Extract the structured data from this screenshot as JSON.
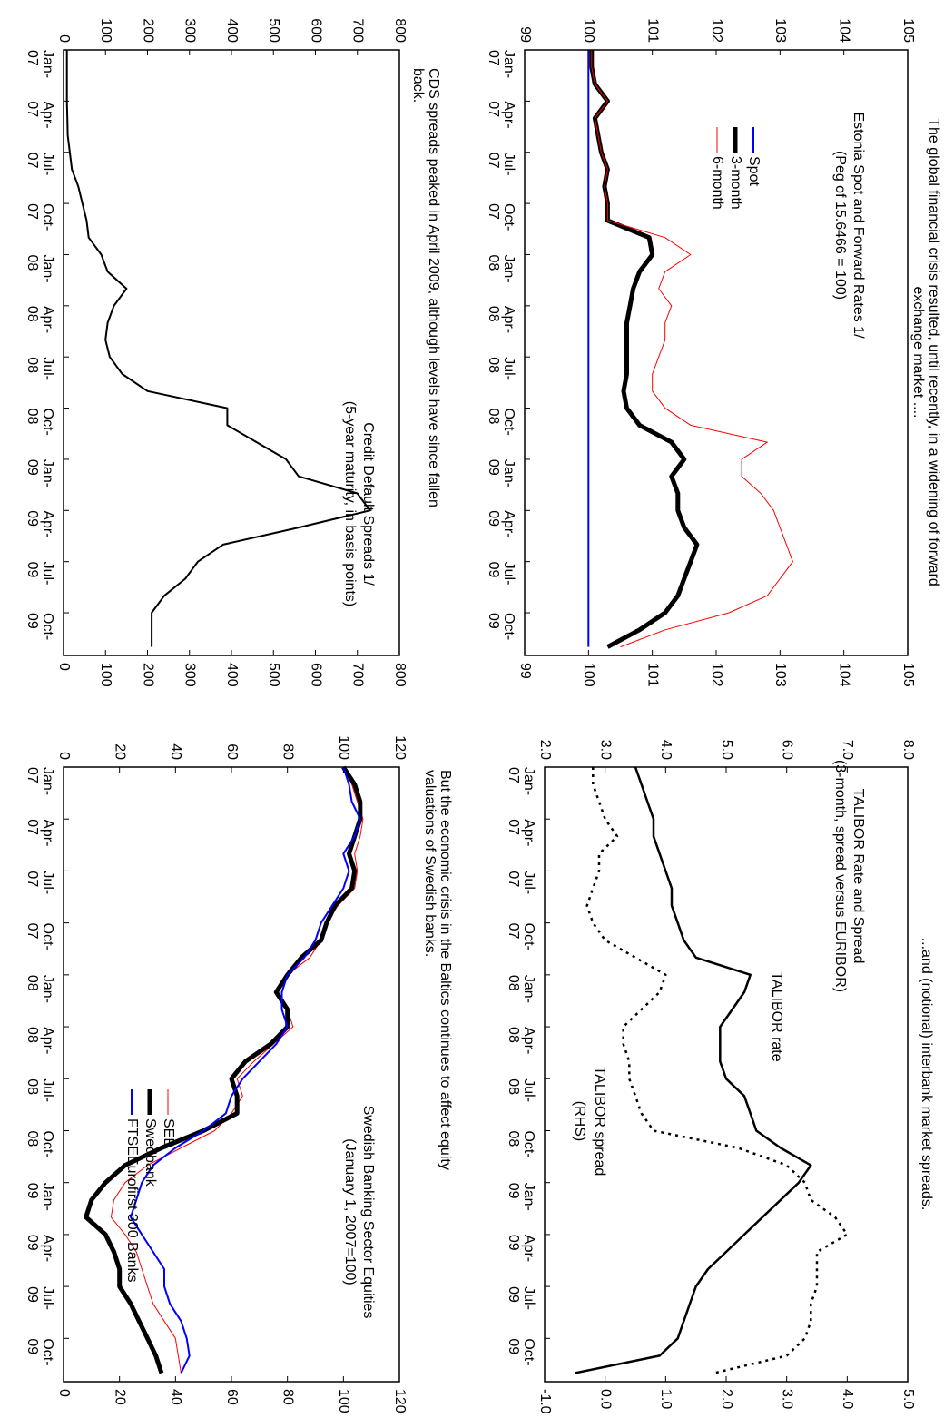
{
  "chart_data": [
    {
      "type": "line",
      "caption": [
        "The global financial crisis resulted, until recently, in a widening of forward",
        "exchange market ...."
      ],
      "title": "Estonia Spot and Forward Rates 1/",
      "subtitle": "(Peg of 15.6466 = 100)",
      "x": [
        0,
        1,
        2,
        3,
        4,
        5,
        6,
        7,
        8,
        9,
        10,
        11,
        12,
        13,
        14,
        15,
        16,
        17,
        18,
        19,
        20,
        21,
        22,
        23,
        24,
        25,
        26,
        27,
        28,
        29,
        30,
        31,
        32,
        33,
        34,
        35
      ],
      "xlim": [
        0,
        35.5
      ],
      "xticks": [
        {
          "value": 0,
          "label": "Jan-07"
        },
        {
          "value": 3,
          "label": "Apr-07"
        },
        {
          "value": 6,
          "label": "Jul-07"
        },
        {
          "value": 9,
          "label": "Oct-07"
        },
        {
          "value": 12,
          "label": "Jan-08"
        },
        {
          "value": 15,
          "label": "Apr-08"
        },
        {
          "value": 18,
          "label": "Jul-08"
        },
        {
          "value": 21,
          "label": "Oct-08"
        },
        {
          "value": 24,
          "label": "Jan-09"
        },
        {
          "value": 27,
          "label": "Apr-09"
        },
        {
          "value": 30,
          "label": "Jul-09"
        },
        {
          "value": 33,
          "label": "Oct-09"
        }
      ],
      "ylim": [
        99,
        105
      ],
      "yticks": [
        99,
        100,
        101,
        102,
        103,
        104,
        105
      ],
      "legend": true,
      "series": [
        {
          "name": "Spot",
          "color": "#0000ff",
          "values": [
            100,
            100,
            100,
            100,
            100,
            100,
            100,
            100,
            100,
            100,
            100,
            100,
            100,
            100,
            100,
            100,
            100,
            100,
            100,
            100,
            100,
            100,
            100,
            100,
            100,
            100,
            100,
            100,
            100,
            100,
            100,
            100,
            100,
            100,
            100,
            100
          ]
        },
        {
          "name": "3-month",
          "color": "#000000",
          "values": [
            100.05,
            100.05,
            100.1,
            100.3,
            100.1,
            100.15,
            100.2,
            100.3,
            100.25,
            100.3,
            100.3,
            100.95,
            101.0,
            100.8,
            100.7,
            100.65,
            100.6,
            100.6,
            100.6,
            100.6,
            100.55,
            100.6,
            100.8,
            101.3,
            101.5,
            101.3,
            101.4,
            101.4,
            101.5,
            101.7,
            101.6,
            101.5,
            101.4,
            101.2,
            100.8,
            100.3
          ]
        },
        {
          "name": "6-month",
          "color": "#ff0000",
          "values": [
            100.05,
            100.05,
            100.1,
            100.3,
            100.1,
            100.15,
            100.2,
            100.3,
            100.25,
            100.3,
            100.3,
            101.2,
            101.6,
            101.2,
            101.1,
            101.3,
            101.2,
            101.2,
            101.1,
            101.0,
            101.0,
            101.2,
            101.6,
            102.8,
            102.4,
            102.4,
            102.7,
            102.9,
            103.0,
            103.1,
            103.2,
            103.0,
            102.8,
            102.2,
            101.2,
            100.5
          ]
        }
      ]
    },
    {
      "type": "line",
      "caption": [
        "...and (notional) interbank market spreads."
      ],
      "title": "TALIBOR Rate and Spread",
      "subtitle": "(3-month, spread versus EURIBOR)",
      "annotations": [
        "TALIBOR rate",
        "TALIBOR spread",
        "(RHS)"
      ],
      "x": [
        0,
        1,
        2,
        3,
        4,
        5,
        6,
        7,
        8,
        9,
        10,
        11,
        12,
        13,
        14,
        15,
        16,
        17,
        18,
        19,
        20,
        21,
        22,
        23,
        24,
        25,
        26,
        27,
        28,
        29,
        30,
        31,
        32,
        33,
        34,
        35
      ],
      "xlim": [
        0,
        35.5
      ],
      "xticks": [
        {
          "value": 0,
          "label": "Jan-07"
        },
        {
          "value": 3,
          "label": "Apr-07"
        },
        {
          "value": 6,
          "label": "Jul-07"
        },
        {
          "value": 9,
          "label": "Oct-07"
        },
        {
          "value": 12,
          "label": "Jan-08"
        },
        {
          "value": 15,
          "label": "Apr-08"
        },
        {
          "value": 18,
          "label": "Jul-08"
        },
        {
          "value": 21,
          "label": "Oct-08"
        },
        {
          "value": 24,
          "label": "Jan-09"
        },
        {
          "value": 27,
          "label": "Apr-09"
        },
        {
          "value": 30,
          "label": "Jul-09"
        },
        {
          "value": 33,
          "label": "Oct-09"
        }
      ],
      "ylim": [
        2,
        8
      ],
      "yticks": [
        {
          "value": 2,
          "label": "2.0"
        },
        {
          "value": 3,
          "label": "3.0"
        },
        {
          "value": 4,
          "label": "4.0"
        },
        {
          "value": 5,
          "label": "5.0"
        },
        {
          "value": 6,
          "label": "6.0"
        },
        {
          "value": 7,
          "label": "7.0"
        },
        {
          "value": 8,
          "label": "8.0"
        }
      ],
      "y2lim": [
        -1,
        5
      ],
      "y2ticks": [
        {
          "value": -1,
          "label": "-1.0"
        },
        {
          "value": 0,
          "label": "0.0"
        },
        {
          "value": 1,
          "label": "1.0"
        },
        {
          "value": 2,
          "label": "2.0"
        },
        {
          "value": 3,
          "label": "3.0"
        },
        {
          "value": 4,
          "label": "4.0"
        },
        {
          "value": 5,
          "label": "5.0"
        }
      ],
      "series": [
        {
          "color": "#000000",
          "values": [
            3.5,
            3.6,
            3.7,
            3.8,
            3.8,
            3.9,
            4.0,
            4.1,
            4.1,
            4.2,
            4.3,
            4.5,
            5.4,
            5.3,
            5.1,
            4.9,
            4.9,
            4.9,
            5.0,
            5.3,
            5.4,
            5.5,
            5.9,
            6.4,
            6.2,
            5.9,
            5.6,
            5.3,
            5.0,
            4.7,
            4.5,
            4.4,
            4.3,
            4.2,
            3.9,
            2.5
          ]
        },
        {
          "color": "#000000",
          "axis": "y2",
          "dashed": true,
          "values": [
            -0.2,
            -0.2,
            -0.1,
            0.0,
            0.2,
            -0.1,
            -0.1,
            -0.2,
            -0.3,
            -0.2,
            0.0,
            0.5,
            1.0,
            0.9,
            0.6,
            0.3,
            0.3,
            0.4,
            0.4,
            0.5,
            0.6,
            0.8,
            2.2,
            3.0,
            3.3,
            3.4,
            3.8,
            4.0,
            3.5,
            3.5,
            3.5,
            3.4,
            3.4,
            3.3,
            3.0,
            1.8
          ]
        }
      ]
    },
    {
      "type": "line",
      "caption": [
        "CDS spreads peaked in April 2009, although levels have since fallen",
        "back."
      ],
      "title": "Credit Default Spreads 1/",
      "subtitle": "(5-year maturity, in basis points)",
      "x": [
        0,
        1,
        2,
        3,
        4,
        5,
        6,
        7,
        8,
        9,
        10,
        11,
        12,
        13,
        14,
        15,
        16,
        17,
        18,
        19,
        20,
        21,
        22,
        23,
        24,
        25,
        26,
        27,
        28,
        29,
        30,
        31,
        32,
        33,
        34,
        35
      ],
      "xlim": [
        0,
        35.5
      ],
      "xticks": [
        {
          "value": 0,
          "label": "Jan-07"
        },
        {
          "value": 3,
          "label": "Apr-07"
        },
        {
          "value": 6,
          "label": "Jul-07"
        },
        {
          "value": 9,
          "label": "Oct-07"
        },
        {
          "value": 12,
          "label": "Jan-08"
        },
        {
          "value": 15,
          "label": "Apr-08"
        },
        {
          "value": 18,
          "label": "Jul-08"
        },
        {
          "value": 21,
          "label": "Oct-08"
        },
        {
          "value": 24,
          "label": "Jan-09"
        },
        {
          "value": 27,
          "label": "Apr-09"
        },
        {
          "value": 30,
          "label": "Jul-09"
        },
        {
          "value": 33,
          "label": "Oct-09"
        }
      ],
      "ylim": [
        0,
        800
      ],
      "yticks": [
        0,
        100,
        200,
        300,
        400,
        500,
        600,
        700,
        800
      ],
      "series": [
        {
          "color": "#000000",
          "values": [
            8,
            8,
            8,
            8,
            9,
            10,
            15,
            20,
            35,
            45,
            55,
            60,
            90,
            105,
            150,
            120,
            105,
            100,
            110,
            140,
            200,
            390,
            390,
            460,
            530,
            560,
            700,
            730,
            560,
            380,
            320,
            290,
            240,
            210,
            210,
            210
          ]
        }
      ]
    },
    {
      "type": "line",
      "caption": [
        "But the economic crisis in the Baltics continues to affect equity",
        "valuations of Swedish banks."
      ],
      "title": "Swedish Banking Sector Equities",
      "subtitle": "(January 1, 2007=100)",
      "x": [
        0,
        1,
        2,
        3,
        4,
        5,
        6,
        7,
        8,
        9,
        10,
        11,
        12,
        13,
        14,
        15,
        16,
        17,
        18,
        19,
        20,
        21,
        22,
        23,
        24,
        25,
        26,
        27,
        28,
        29,
        30,
        31,
        32,
        33,
        34,
        35
      ],
      "xlim": [
        0,
        35.5
      ],
      "xticks": [
        {
          "value": 0,
          "label": "Jan-07"
        },
        {
          "value": 3,
          "label": "Apr-07"
        },
        {
          "value": 6,
          "label": "Jul-07"
        },
        {
          "value": 9,
          "label": "Oct-07"
        },
        {
          "value": 12,
          "label": "Jan-08"
        },
        {
          "value": 15,
          "label": "Apr-08"
        },
        {
          "value": 18,
          "label": "Jul-08"
        },
        {
          "value": 21,
          "label": "Oct-08"
        },
        {
          "value": 24,
          "label": "Jan-09"
        },
        {
          "value": 27,
          "label": "Apr-09"
        },
        {
          "value": 30,
          "label": "Jul-09"
        },
        {
          "value": 33,
          "label": "Oct-09"
        }
      ],
      "ylim": [
        0,
        120
      ],
      "yticks": [
        0,
        20,
        40,
        60,
        80,
        100,
        120
      ],
      "legend": true,
      "series": [
        {
          "name": "SEB",
          "color": "#ff0000",
          "values": [
            100,
            103,
            105,
            107,
            106,
            104,
            105,
            104,
            98,
            94,
            92,
            88,
            80,
            76,
            80,
            82,
            75,
            68,
            62,
            64,
            60,
            54,
            42,
            30,
            22,
            18,
            17,
            22,
            26,
            28,
            30,
            32,
            36,
            40,
            41,
            42
          ]
        },
        {
          "name": "Swedbank",
          "color": "#000000",
          "values": [
            100,
            104,
            106,
            106,
            104,
            102,
            104,
            103,
            97,
            94,
            92,
            85,
            80,
            76,
            80,
            80,
            74,
            65,
            60,
            62,
            62,
            50,
            35,
            22,
            15,
            10,
            8,
            15,
            18,
            20,
            20,
            24,
            27,
            30,
            33,
            35
          ]
        },
        {
          "name": "FTSEEurofirst 300 Banks",
          "color": "#0000ff",
          "values": [
            100,
            102,
            103,
            106,
            104,
            100,
            102,
            100,
            96,
            92,
            90,
            86,
            80,
            78,
            78,
            80,
            76,
            70,
            64,
            60,
            58,
            50,
            40,
            32,
            28,
            26,
            24,
            28,
            32,
            36,
            36,
            38,
            42,
            44,
            45,
            42
          ]
        }
      ]
    }
  ]
}
